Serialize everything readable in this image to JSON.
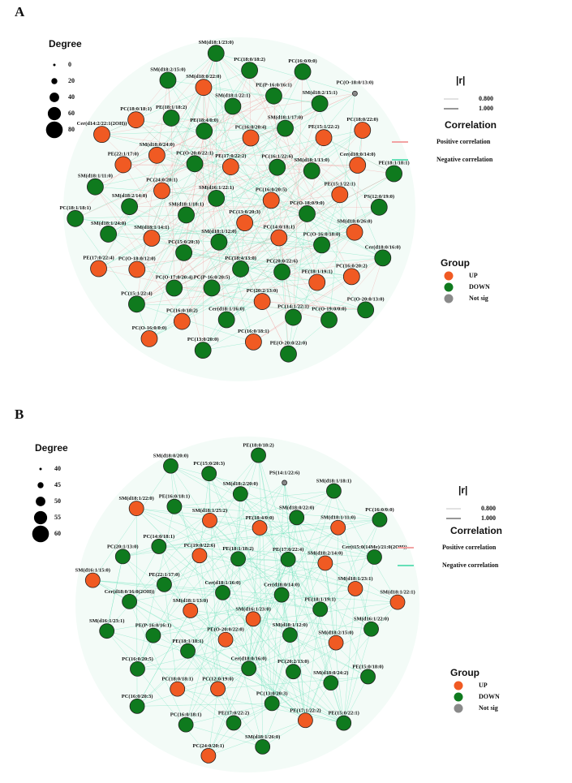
{
  "panels": [
    {
      "label": "A",
      "degree_legend": {
        "title": "Degree",
        "values": [
          0,
          20,
          40,
          60,
          80
        ]
      },
      "edge_legend": {
        "title": "|r|",
        "values": [
          "0.800",
          "1.000"
        ]
      },
      "correlation_legend": {
        "title": "Correlation",
        "items": [
          {
            "label": "Positive correlation",
            "color": "#f2a3a3"
          },
          {
            "label": "Negative correlation",
            "color": "#66e0b8"
          }
        ]
      },
      "group_legend": {
        "title": "Group",
        "items": [
          {
            "label": "UP",
            "color": "#f05a23"
          },
          {
            "label": "DOWN",
            "color": "#0f7a1e"
          },
          {
            "label": "Not sig",
            "color": "#8a8a8a"
          }
        ]
      },
      "nodes": [
        {
          "label": "PC(13:0/20:3)",
          "group": "UP"
        },
        {
          "label": "SM(d16:1/22:1)",
          "group": "DOWN"
        },
        {
          "label": "PC(16:0/20:5)",
          "group": "UP"
        },
        {
          "label": "SM(d18:1/12:0)",
          "group": "DOWN"
        },
        {
          "label": "PE(17:0/22:2)",
          "group": "UP"
        },
        {
          "label": "PC(14:0/18:1)",
          "group": "UP"
        },
        {
          "label": "SM(d18:1/18:1)",
          "group": "DOWN"
        },
        {
          "label": "PC(16:1/22:6)",
          "group": "DOWN"
        },
        {
          "label": "PC(18:4/13:0)",
          "group": "DOWN"
        },
        {
          "label": "PC(O-20:0/22:1)",
          "group": "DOWN"
        },
        {
          "label": "PC(O-18:0/9:0)",
          "group": "DOWN"
        },
        {
          "label": "PC(15:0/20:3)",
          "group": "DOWN"
        },
        {
          "label": "PC(16:0/20:4)",
          "group": "UP"
        },
        {
          "label": "PC(20:0/22:6)",
          "group": "DOWN"
        },
        {
          "label": "PC(24:0/20:1)",
          "group": "UP"
        },
        {
          "label": "SM(d18:1/13:0)",
          "group": "DOWN"
        },
        {
          "label": "PC(P-16:0/20:5)",
          "group": "DOWN"
        },
        {
          "label": "PE(18:4/0:0)",
          "group": "DOWN"
        },
        {
          "label": "PC(O-16:0/18:0)",
          "group": "DOWN"
        },
        {
          "label": "SM(d18:1/14:1)",
          "group": "UP"
        },
        {
          "label": "SM(d18:1/17:0)",
          "group": "DOWN"
        },
        {
          "label": "PC(20:2/13:0)",
          "group": "UP"
        },
        {
          "label": "SM(d18:0/24:0)",
          "group": "UP"
        },
        {
          "label": "PE(15:1/22:1)",
          "group": "UP"
        },
        {
          "label": "PC(O-17:0/20:4)",
          "group": "DOWN"
        },
        {
          "label": "SM(d18:1/22:1)",
          "group": "DOWN"
        },
        {
          "label": "PE(18:1/19:1)",
          "group": "UP"
        },
        {
          "label": "SM(d18:2/14:0)",
          "group": "DOWN"
        },
        {
          "label": "PE(15:1/22:2)",
          "group": "UP"
        },
        {
          "label": "Cer(d18:1/16:0)",
          "group": "DOWN"
        },
        {
          "label": "PE(18:1/18:2)",
          "group": "DOWN"
        },
        {
          "label": "SM(d18:0/26:0)",
          "group": "UP"
        },
        {
          "label": "PC(O-18:0/12:0)",
          "group": "UP"
        },
        {
          "label": "PE(P-16:0/16:1)",
          "group": "DOWN"
        },
        {
          "label": "PC(14:1/22:1)",
          "group": "DOWN"
        },
        {
          "label": "PE(22:1/17:0)",
          "group": "UP"
        },
        {
          "label": "Cer(d18:0/14:0)",
          "group": "UP"
        },
        {
          "label": "PC(16:0/18:2)",
          "group": "UP"
        },
        {
          "label": "SM(d18:0/22:0)",
          "group": "UP"
        },
        {
          "label": "PC(16:0/20:2)",
          "group": "UP"
        },
        {
          "label": "SM(d18:1/24:0)",
          "group": "DOWN"
        },
        {
          "label": "SM(d18:2/15:1)",
          "group": "DOWN"
        },
        {
          "label": "PC(16:0/18:1)",
          "group": "UP"
        },
        {
          "label": "PC(18:0/18:1)",
          "group": "UP"
        },
        {
          "label": "PS(12:0/19:0)",
          "group": "DOWN"
        },
        {
          "label": "PC(15:1/22:4)",
          "group": "DOWN"
        },
        {
          "label": "PC(18:0/18:2)",
          "group": "DOWN"
        },
        {
          "label": "PC(O-19:0/0:0)",
          "group": "DOWN"
        },
        {
          "label": "SM(d18:1/11:0)",
          "group": "DOWN"
        },
        {
          "label": "PC(18:0/22:0)",
          "group": "UP"
        },
        {
          "label": "PC(13:0/20:0)",
          "group": "DOWN"
        },
        {
          "label": "SM(d18:2/15:0)",
          "group": "DOWN"
        },
        {
          "label": "Cer(d18:0/16:0)",
          "group": "DOWN"
        },
        {
          "label": "PE(17:0/22:4)",
          "group": "UP"
        },
        {
          "label": "PC(16:0/0:0)",
          "group": "DOWN"
        },
        {
          "label": "PE(O-20:0/22:0)",
          "group": "DOWN"
        },
        {
          "label": "Cer(d14:2/22:1(2OH))",
          "group": "UP"
        },
        {
          "label": "PE(18:1/18:1)",
          "group": "DOWN"
        },
        {
          "label": "PC(O-16:0/0:0)",
          "group": "UP"
        },
        {
          "label": "SM(d18:1/23:0)",
          "group": "DOWN"
        },
        {
          "label": "PC(O-20:0/13:0)",
          "group": "DOWN"
        },
        {
          "label": "PC(18:1/18:1)",
          "group": "DOWN"
        },
        {
          "label": "PC(O-18:0/13:0)",
          "group": "Not sig"
        }
      ]
    },
    {
      "label": "B",
      "degree_legend": {
        "title": "Degree",
        "values": [
          40,
          45,
          50,
          55,
          60
        ]
      },
      "edge_legend": {
        "title": "|r|",
        "values": [
          "0.800",
          "1.000"
        ]
      },
      "correlation_legend": {
        "title": "Correlation",
        "items": [
          {
            "label": "Positive correlation",
            "color": "#f2a3a3"
          },
          {
            "label": "Negative correlation",
            "color": "#66e0b8"
          }
        ]
      },
      "group_legend": {
        "title": "Group",
        "items": [
          {
            "label": "UP",
            "color": "#f05a23"
          },
          {
            "label": "DOWN",
            "color": "#0f7a1e"
          },
          {
            "label": "Not sig",
            "color": "#8a8a8a"
          }
        ]
      },
      "nodes": [
        {
          "label": "SM(d16:1/23:0)",
          "group": "UP"
        },
        {
          "label": "Cer(d18:1/16:0)",
          "group": "DOWN"
        },
        {
          "label": "Cer(d18:0/14:0)",
          "group": "DOWN"
        },
        {
          "label": "PE(O-20:0/22:0)",
          "group": "UP"
        },
        {
          "label": "PE(18:1/18:2)",
          "group": "DOWN"
        },
        {
          "label": "SM(d18:1/12:0)",
          "group": "DOWN"
        },
        {
          "label": "SM(d18:1/13:0)",
          "group": "UP"
        },
        {
          "label": "PE(17:0/22:4)",
          "group": "DOWN"
        },
        {
          "label": "Cer(d18:0/16:0)",
          "group": "DOWN"
        },
        {
          "label": "PC(19:0/22:6)",
          "group": "UP"
        },
        {
          "label": "PE(18:1/19:1)",
          "group": "DOWN"
        },
        {
          "label": "PE(18:1/18:1)",
          "group": "DOWN"
        },
        {
          "label": "PE(18:4/0:0)",
          "group": "UP"
        },
        {
          "label": "PC(20:2/13:0)",
          "group": "DOWN"
        },
        {
          "label": "PE(22:1/17:0)",
          "group": "DOWN"
        },
        {
          "label": "SM(d18:2/14:0)",
          "group": "UP"
        },
        {
          "label": "PC(12:0/19:0)",
          "group": "UP"
        },
        {
          "label": "SM(d18:1/25:2)",
          "group": "UP"
        },
        {
          "label": "SM(d18:2/15:0)",
          "group": "UP"
        },
        {
          "label": "PE(P-16:0/16:1)",
          "group": "DOWN"
        },
        {
          "label": "SM(d18:0/22:0)",
          "group": "DOWN"
        },
        {
          "label": "PC(13:0/20:3)",
          "group": "DOWN"
        },
        {
          "label": "PC(14:0/18:1)",
          "group": "DOWN"
        },
        {
          "label": "SM(d18:1/23:1)",
          "group": "UP"
        },
        {
          "label": "PC(18:0/18:1)",
          "group": "UP"
        },
        {
          "label": "SM(d18:2/20:0)",
          "group": "DOWN"
        },
        {
          "label": "SM(d18:0/24:2)",
          "group": "DOWN"
        },
        {
          "label": "Cer(d18:0/16:0(2OH))",
          "group": "DOWN"
        },
        {
          "label": "SM(d18:1/11:0)",
          "group": "UP"
        },
        {
          "label": "PE(17:0/22:2)",
          "group": "DOWN"
        },
        {
          "label": "PE(16:0/18:1)",
          "group": "DOWN"
        },
        {
          "label": "SM(d16:1/22:0)",
          "group": "DOWN"
        },
        {
          "label": "PC(16:0/20:5)",
          "group": "DOWN"
        },
        {
          "label": "PS(14:1/22:6)",
          "group": "Not sig"
        },
        {
          "label": "PE(17:1/22:2)",
          "group": "UP"
        },
        {
          "label": "PC(20:1/13:0)",
          "group": "DOWN"
        },
        {
          "label": "Cer(t15:0(14Me)/21:0(2OH))",
          "group": "DOWN"
        },
        {
          "label": "PC(16:0/18:1)",
          "group": "DOWN"
        },
        {
          "label": "PC(15:0/20:3)",
          "group": "DOWN"
        },
        {
          "label": "PE(15:0/18:0)",
          "group": "DOWN"
        },
        {
          "label": "SM(d16:1/23:1)",
          "group": "DOWN"
        },
        {
          "label": "SM(d18:1/18:1)",
          "group": "DOWN"
        },
        {
          "label": "SM(d18:1/26:0)",
          "group": "DOWN"
        },
        {
          "label": "SM(d18:1/22:0)",
          "group": "UP"
        },
        {
          "label": "SM(d18:1/22:1)",
          "group": "UP"
        },
        {
          "label": "PC(16:0/20:3)",
          "group": "DOWN"
        },
        {
          "label": "PE(18:0/18:2)",
          "group": "DOWN"
        },
        {
          "label": "PE(15:0/22:1)",
          "group": "DOWN"
        },
        {
          "label": "SM(d16:1/15:0)",
          "group": "UP"
        },
        {
          "label": "PC(16:0/0:0)",
          "group": "DOWN"
        },
        {
          "label": "PC(24:0/20:1)",
          "group": "UP"
        },
        {
          "label": "SM(d18:0/20:0)",
          "group": "DOWN"
        }
      ]
    }
  ]
}
